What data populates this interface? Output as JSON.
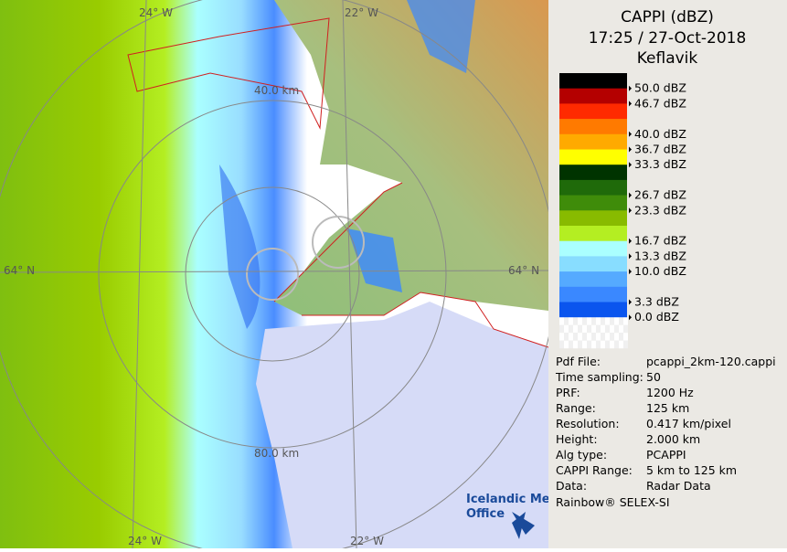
{
  "header": {
    "title": "CAPPI (dBZ)",
    "time": "17:25 / 27-Oct-2018",
    "site": "Keflavik"
  },
  "legend": {
    "colors": [
      "#000000",
      "#b40000",
      "#ff2a00",
      "#ff7a00",
      "#ffaa00",
      "#ffff00",
      "#003300",
      "#1f6a0a",
      "#3f8c0a",
      "#88bb00",
      "#b4ee22",
      "#aaffff",
      "#88ddff",
      "#55aaff",
      "#3a88ff",
      "#0a55ee"
    ],
    "labels": [
      {
        "text": "50.0 dBZ",
        "at": 1
      },
      {
        "text": "46.7 dBZ",
        "at": 2
      },
      {
        "text": "40.0 dBZ",
        "at": 4
      },
      {
        "text": "36.7 dBZ",
        "at": 5
      },
      {
        "text": "33.3 dBZ",
        "at": 6
      },
      {
        "text": "26.7 dBZ",
        "at": 8
      },
      {
        "text": "23.3 dBZ",
        "at": 9
      },
      {
        "text": "16.7 dBZ",
        "at": 11
      },
      {
        "text": "13.3 dBZ",
        "at": 12
      },
      {
        "text": "10.0 dBZ",
        "at": 13
      },
      {
        "text": "3.3 dBZ",
        "at": 15
      },
      {
        "text": "0.0 dBZ",
        "at": 16
      }
    ]
  },
  "info": [
    [
      "Pdf File:",
      "pcappi_2km-120.cappi"
    ],
    [
      "Time sampling:",
      "50"
    ],
    [
      "PRF:",
      "1200 Hz"
    ],
    [
      "Range:",
      "125 km"
    ],
    [
      "Resolution:",
      "0.417 km/pixel"
    ],
    [
      "Height:",
      "2.000 km"
    ],
    [
      "Alg type:",
      "PCAPPI"
    ],
    [
      "CAPPI Range:",
      "5 km to 125 km"
    ],
    [
      "Data:",
      "Radar Data"
    ]
  ],
  "footer": "Rainbow® SELEX-SI",
  "logo": [
    "Icelandic Met",
    "Office"
  ],
  "map_labels": {
    "top_left": "24° W",
    "top_right": "22° W",
    "bottom_left": "24° W",
    "bottom_right": "22° W",
    "left": "64° N",
    "right": "64° N",
    "ring_inner": "40.0 km",
    "ring_outer": "80.0 km"
  }
}
